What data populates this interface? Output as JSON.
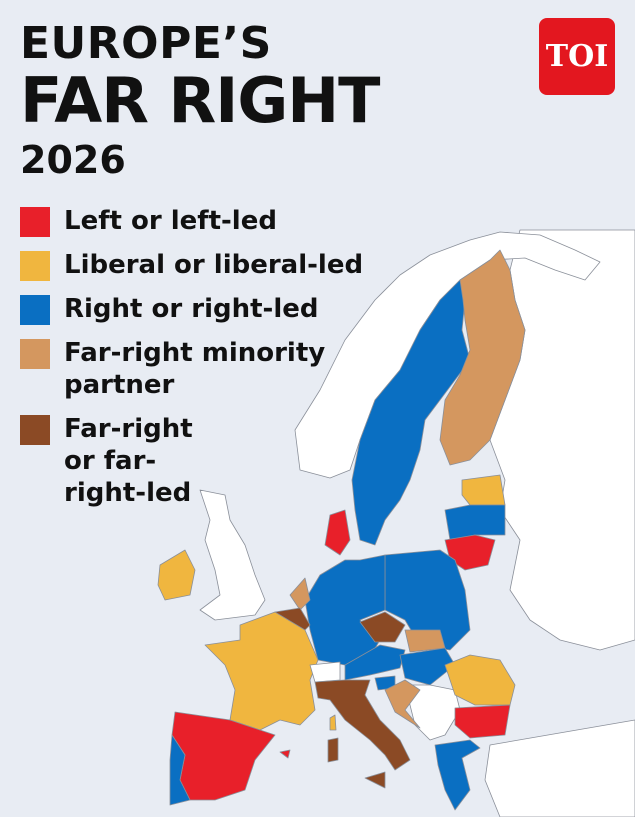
{
  "header": {
    "title_line1": "EUROPE’S",
    "title_line2": "FAR RIGHT",
    "year": "2026",
    "logo": "TOI",
    "logo_color": "#e3171f"
  },
  "legend": [
    {
      "label": "Left or left-led",
      "color": "#e8202a"
    },
    {
      "label": "Liberal or liberal-led",
      "color": "#f0b63f"
    },
    {
      "label": "Right or right-led",
      "color": "#0a6fc2"
    },
    {
      "label": "Far-right minority partner",
      "color": "#d4975f"
    },
    {
      "label": "Far-right or far-right-led",
      "color": "#8b4a25"
    }
  ]
}
